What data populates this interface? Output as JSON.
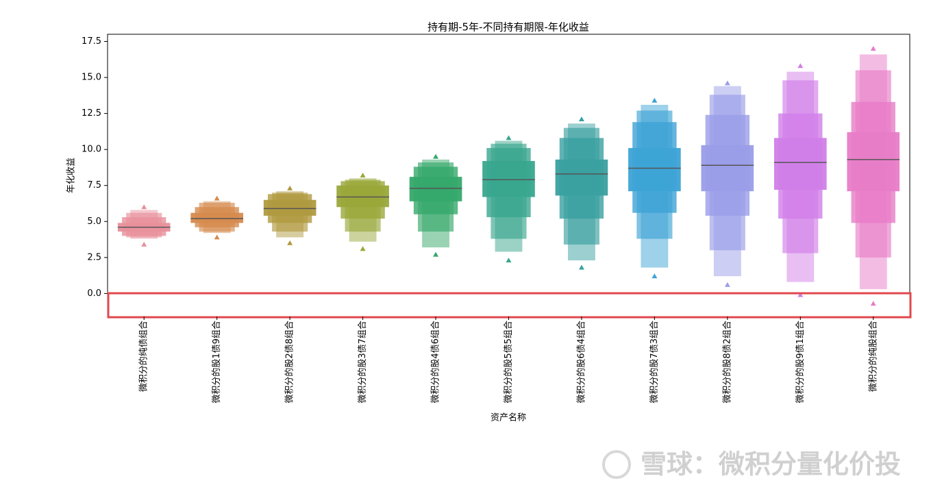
{
  "chart_data": {
    "type": "boxen",
    "title": "持有期-5年-不同持有期限-年化收益",
    "xlabel": "资产名称",
    "ylabel": "年化收益",
    "categories": [
      "微积分的纯债组合",
      "微积分的股1债9组合",
      "微积分的股2债8组合",
      "微积分的股3债7组合",
      "微积分的股4债6组合",
      "微积分的股5债5组合",
      "微积分的股6债4组合",
      "微积分的股7债3组合",
      "微积分的股8债2组合",
      "微积分的股9债1组合",
      "微积分的纯股组合"
    ],
    "colors": [
      "#e8909b",
      "#d68b4e",
      "#b09a40",
      "#9aa83a",
      "#35a86a",
      "#39a68e",
      "#3aa0a0",
      "#3da3d6",
      "#9a9de8",
      "#d17ee8",
      "#e87cc7"
    ],
    "medians": [
      4.6,
      5.2,
      5.9,
      6.7,
      7.3,
      7.9,
      8.3,
      8.7,
      8.9,
      9.1,
      9.3
    ],
    "boxes": [
      [
        [
          4.3,
          4.9
        ],
        [
          4.0,
          5.3
        ],
        [
          3.9,
          5.6
        ],
        [
          3.8,
          5.8
        ]
      ],
      [
        [
          4.9,
          5.6
        ],
        [
          4.6,
          6.0
        ],
        [
          4.3,
          6.3
        ],
        [
          4.2,
          6.4
        ]
      ],
      [
        [
          5.4,
          6.5
        ],
        [
          4.9,
          6.9
        ],
        [
          4.3,
          7.0
        ],
        [
          3.9,
          7.1
        ]
      ],
      [
        [
          6.0,
          7.5
        ],
        [
          5.2,
          7.8
        ],
        [
          4.3,
          7.9
        ],
        [
          3.6,
          8.0
        ]
      ],
      [
        [
          6.4,
          8.1
        ],
        [
          5.5,
          8.8
        ],
        [
          4.3,
          9.1
        ],
        [
          3.2,
          9.3
        ]
      ],
      [
        [
          6.7,
          9.2
        ],
        [
          5.3,
          10.1
        ],
        [
          3.8,
          10.4
        ],
        [
          2.9,
          10.6
        ]
      ],
      [
        [
          6.8,
          9.3
        ],
        [
          5.2,
          10.8
        ],
        [
          3.4,
          11.5
        ],
        [
          2.3,
          11.8
        ]
      ],
      [
        [
          7.1,
          10.1
        ],
        [
          5.6,
          11.9
        ],
        [
          3.8,
          12.7
        ],
        [
          1.8,
          13.1
        ]
      ],
      [
        [
          7.1,
          10.3
        ],
        [
          5.4,
          12.4
        ],
        [
          3.0,
          13.8
        ],
        [
          1.2,
          14.4
        ]
      ],
      [
        [
          7.2,
          10.8
        ],
        [
          5.2,
          12.5
        ],
        [
          2.8,
          14.8
        ],
        [
          0.8,
          15.4
        ]
      ],
      [
        [
          7.1,
          11.2
        ],
        [
          4.9,
          13.3
        ],
        [
          2.5,
          15.5
        ],
        [
          0.3,
          16.6
        ]
      ]
    ],
    "outliers_low": [
      3.4,
      3.9,
      3.5,
      3.1,
      2.7,
      2.3,
      1.8,
      1.2,
      0.6,
      -0.1,
      -0.7
    ],
    "outliers_high": [
      6.0,
      6.6,
      7.3,
      8.2,
      9.5,
      10.8,
      12.1,
      13.4,
      14.6,
      15.8,
      17.0
    ],
    "ylim": [
      -1.6,
      18.0
    ],
    "yticks": [
      {
        "value": 0,
        "label": "0.0"
      },
      2.5,
      {
        "value": 5,
        "label": "5.0"
      },
      7.5,
      {
        "value": 10,
        "label": "10.0"
      },
      12.5,
      {
        "value": 15,
        "label": "15.0"
      },
      17.5
    ],
    "median_color": "#555555"
  },
  "watermark": "雪球：微积分量化价投"
}
